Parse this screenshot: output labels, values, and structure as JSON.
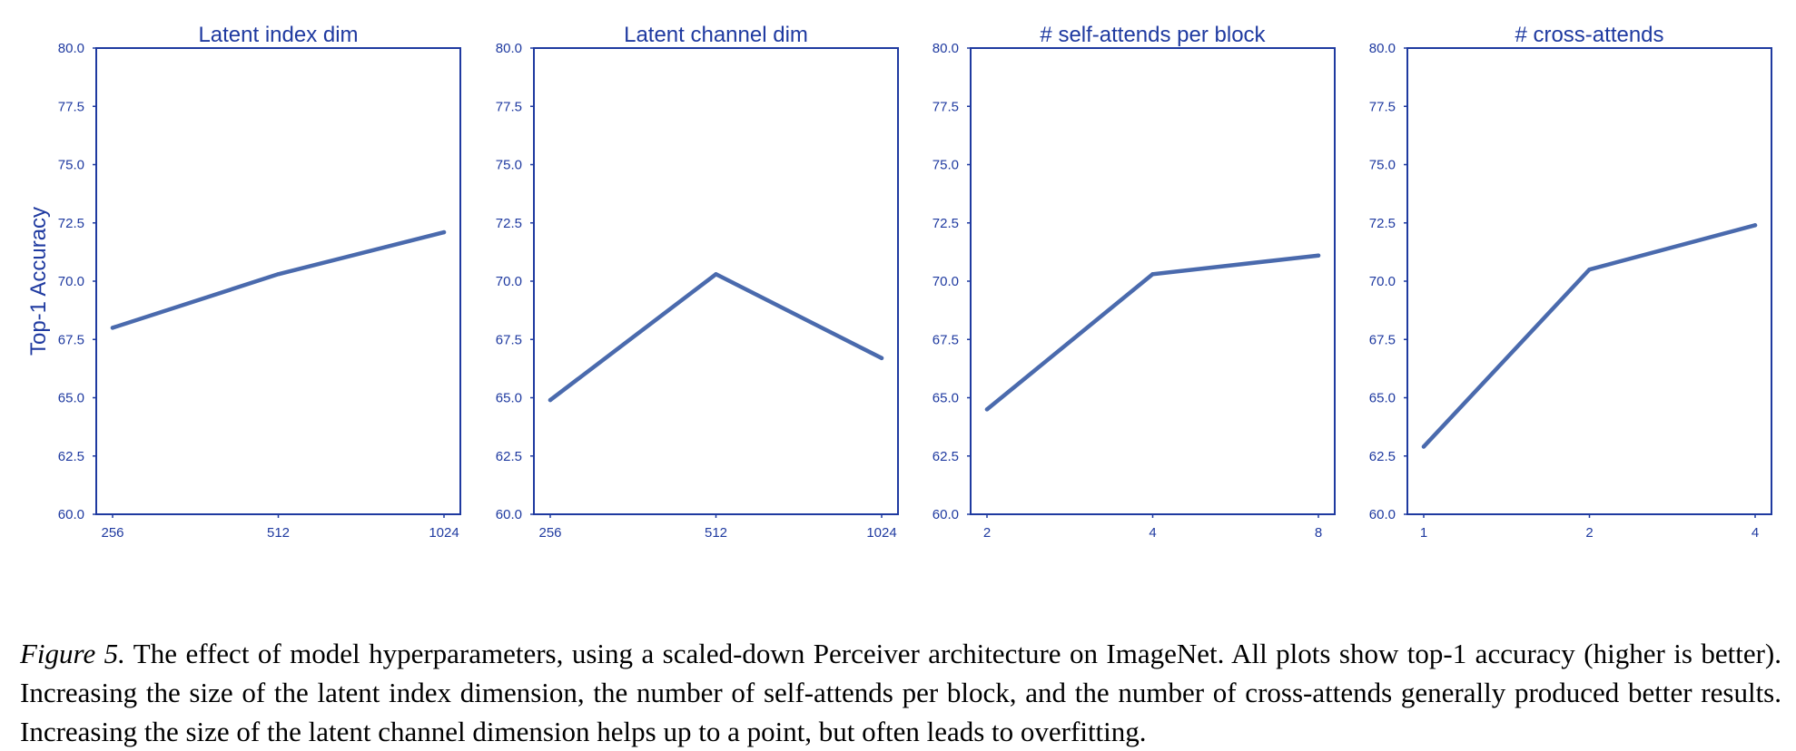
{
  "chart_data": [
    {
      "type": "line",
      "title": "Latent index dim",
      "ylabel": "Top-1 Accuracy",
      "categories": [
        "256",
        "512",
        "1024"
      ],
      "series": [
        {
          "values": [
            68.0,
            70.3,
            72.1
          ]
        }
      ],
      "ylim": [
        60.0,
        80.0
      ],
      "yticks": [
        "60.0",
        "62.5",
        "65.0",
        "67.5",
        "70.0",
        "72.5",
        "75.0",
        "77.5",
        "80.0"
      ],
      "grid": false
    },
    {
      "type": "line",
      "title": "Latent channel dim",
      "ylabel": "",
      "categories": [
        "256",
        "512",
        "1024"
      ],
      "series": [
        {
          "values": [
            64.9,
            70.3,
            66.7
          ]
        }
      ],
      "ylim": [
        60.0,
        80.0
      ],
      "yticks": [
        "60.0",
        "62.5",
        "65.0",
        "67.5",
        "70.0",
        "72.5",
        "75.0",
        "77.5",
        "80.0"
      ],
      "grid": false
    },
    {
      "type": "line",
      "title": "# self-attends per block",
      "ylabel": "",
      "categories": [
        "2",
        "4",
        "8"
      ],
      "series": [
        {
          "values": [
            64.5,
            70.3,
            71.1
          ]
        }
      ],
      "ylim": [
        60.0,
        80.0
      ],
      "yticks": [
        "60.0",
        "62.5",
        "65.0",
        "67.5",
        "70.0",
        "72.5",
        "75.0",
        "77.5",
        "80.0"
      ],
      "grid": false
    },
    {
      "type": "line",
      "title": "# cross-attends",
      "ylabel": "",
      "categories": [
        "1",
        "2",
        "4"
      ],
      "series": [
        {
          "values": [
            62.9,
            70.5,
            72.4
          ]
        }
      ],
      "ylim": [
        60.0,
        80.0
      ],
      "yticks": [
        "60.0",
        "62.5",
        "65.0",
        "67.5",
        "70.0",
        "72.5",
        "75.0",
        "77.5",
        "80.0"
      ],
      "grid": false
    }
  ],
  "colors": {
    "line": "#4a6aad",
    "axis": "#1f3aa0"
  },
  "caption": {
    "label": "Figure 5.",
    "text": " The effect of model hyperparameters, using a scaled-down Perceiver architecture on ImageNet. All plots show top-1 accuracy (higher is better). Increasing the size of the latent index dimension, the number of self-attends per block, and the number of cross-attends generally produced better results. Increasing the size of the latent channel dimension helps up to a point, but often leads to overfitting."
  }
}
